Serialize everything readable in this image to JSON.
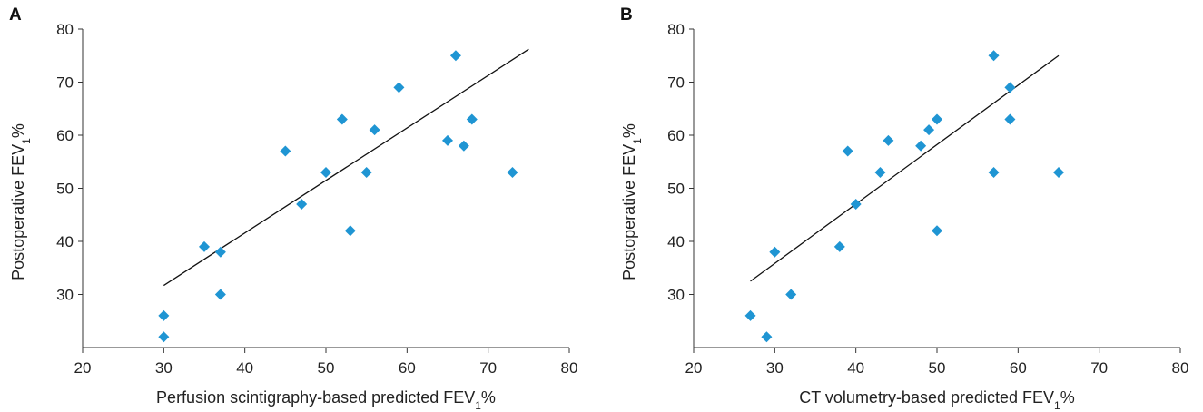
{
  "chart_data": [
    {
      "type": "scatter",
      "panel_label": "A",
      "xlabel": "Perfusion scintigraphy-based predicted FEV",
      "xlabel_sub": "1",
      "xlabel_suffix": "%",
      "ylabel": "Postoperative FEV",
      "ylabel_sub": "1",
      "ylabel_suffix": "%",
      "xlim": [
        20,
        80
      ],
      "ylim": [
        20,
        80
      ],
      "xticks": [
        20,
        30,
        40,
        50,
        60,
        70,
        80
      ],
      "yticks": [
        30,
        40,
        50,
        60,
        70,
        80
      ],
      "marker_color": "#1f95d3",
      "points": [
        {
          "x": 30,
          "y": 26
        },
        {
          "x": 30,
          "y": 22
        },
        {
          "x": 35,
          "y": 39
        },
        {
          "x": 37,
          "y": 38
        },
        {
          "x": 37,
          "y": 30
        },
        {
          "x": 45,
          "y": 57
        },
        {
          "x": 47,
          "y": 47
        },
        {
          "x": 50,
          "y": 53
        },
        {
          "x": 52,
          "y": 63
        },
        {
          "x": 53,
          "y": 42
        },
        {
          "x": 55,
          "y": 53
        },
        {
          "x": 56,
          "y": 61
        },
        {
          "x": 59,
          "y": 69
        },
        {
          "x": 65,
          "y": 59
        },
        {
          "x": 66,
          "y": 75
        },
        {
          "x": 67,
          "y": 58
        },
        {
          "x": 68,
          "y": 63
        },
        {
          "x": 73,
          "y": 53
        }
      ],
      "trendline": {
        "x": [
          30,
          75
        ],
        "y": [
          31.7,
          76.2
        ]
      }
    },
    {
      "type": "scatter",
      "panel_label": "B",
      "xlabel": "CT volumetry-based predicted FEV",
      "xlabel_sub": "1",
      "xlabel_suffix": "%",
      "ylabel": "Postoperative FEV",
      "ylabel_sub": "1",
      "ylabel_suffix": "%",
      "xlim": [
        20,
        80
      ],
      "ylim": [
        20,
        80
      ],
      "xticks": [
        20,
        30,
        40,
        50,
        60,
        70,
        80
      ],
      "yticks": [
        30,
        40,
        50,
        60,
        70,
        80
      ],
      "marker_color": "#1f95d3",
      "points": [
        {
          "x": 27,
          "y": 26
        },
        {
          "x": 29,
          "y": 22
        },
        {
          "x": 30,
          "y": 38
        },
        {
          "x": 32,
          "y": 30
        },
        {
          "x": 38,
          "y": 39
        },
        {
          "x": 39,
          "y": 57
        },
        {
          "x": 40,
          "y": 47
        },
        {
          "x": 43,
          "y": 53
        },
        {
          "x": 44,
          "y": 59
        },
        {
          "x": 48,
          "y": 58
        },
        {
          "x": 49,
          "y": 61
        },
        {
          "x": 50,
          "y": 63
        },
        {
          "x": 50,
          "y": 42
        },
        {
          "x": 57,
          "y": 75
        },
        {
          "x": 57,
          "y": 53
        },
        {
          "x": 59,
          "y": 69
        },
        {
          "x": 59,
          "y": 63
        },
        {
          "x": 65,
          "y": 53
        }
      ],
      "trendline": {
        "x": [
          27,
          65
        ],
        "y": [
          32.5,
          75
        ]
      }
    }
  ]
}
